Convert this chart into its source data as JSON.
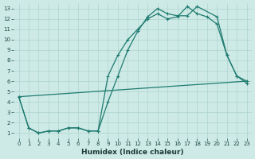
{
  "xlabel": "Humidex (Indice chaleur)",
  "xlim": [
    -0.5,
    23.5
  ],
  "ylim": [
    0.5,
    13.5
  ],
  "xticks": [
    0,
    1,
    2,
    3,
    4,
    5,
    6,
    7,
    8,
    9,
    10,
    11,
    12,
    13,
    14,
    15,
    16,
    17,
    18,
    19,
    20,
    21,
    22,
    23
  ],
  "yticks": [
    1,
    2,
    3,
    4,
    5,
    6,
    7,
    8,
    9,
    10,
    11,
    12,
    13
  ],
  "background_color": "#ceeae6",
  "grid_color": "#aed4cf",
  "line_color": "#1e7b70",
  "line1_x": [
    0,
    1,
    2,
    3,
    4,
    5,
    6,
    7,
    8,
    9,
    10,
    11,
    12,
    13,
    14,
    15,
    16,
    17,
    18,
    20,
    21,
    22,
    23
  ],
  "line1_y": [
    4.5,
    1.5,
    1.0,
    1.2,
    1.2,
    1.5,
    1.5,
    1.2,
    1.2,
    4.0,
    6.5,
    9.0,
    10.8,
    12.2,
    13.0,
    12.5,
    12.3,
    12.3,
    13.2,
    12.2,
    8.5,
    6.5,
    6.0
  ],
  "line2_x": [
    0,
    1,
    2,
    3,
    4,
    5,
    6,
    7,
    8,
    9,
    10,
    11,
    12,
    13,
    14,
    15,
    16,
    17,
    18,
    19,
    20,
    21,
    22,
    23
  ],
  "line2_y": [
    4.5,
    1.5,
    1.0,
    1.2,
    1.2,
    1.5,
    1.5,
    1.2,
    1.2,
    6.5,
    8.5,
    10.0,
    11.0,
    12.0,
    12.5,
    12.0,
    12.2,
    13.2,
    12.5,
    12.2,
    11.5,
    8.5,
    6.5,
    5.8
  ],
  "line3_x": [
    0,
    23
  ],
  "line3_y": [
    4.5,
    6.0
  ],
  "linewidth": 0.9,
  "markersize": 3,
  "tick_fontsize": 5,
  "label_fontsize": 6.5
}
